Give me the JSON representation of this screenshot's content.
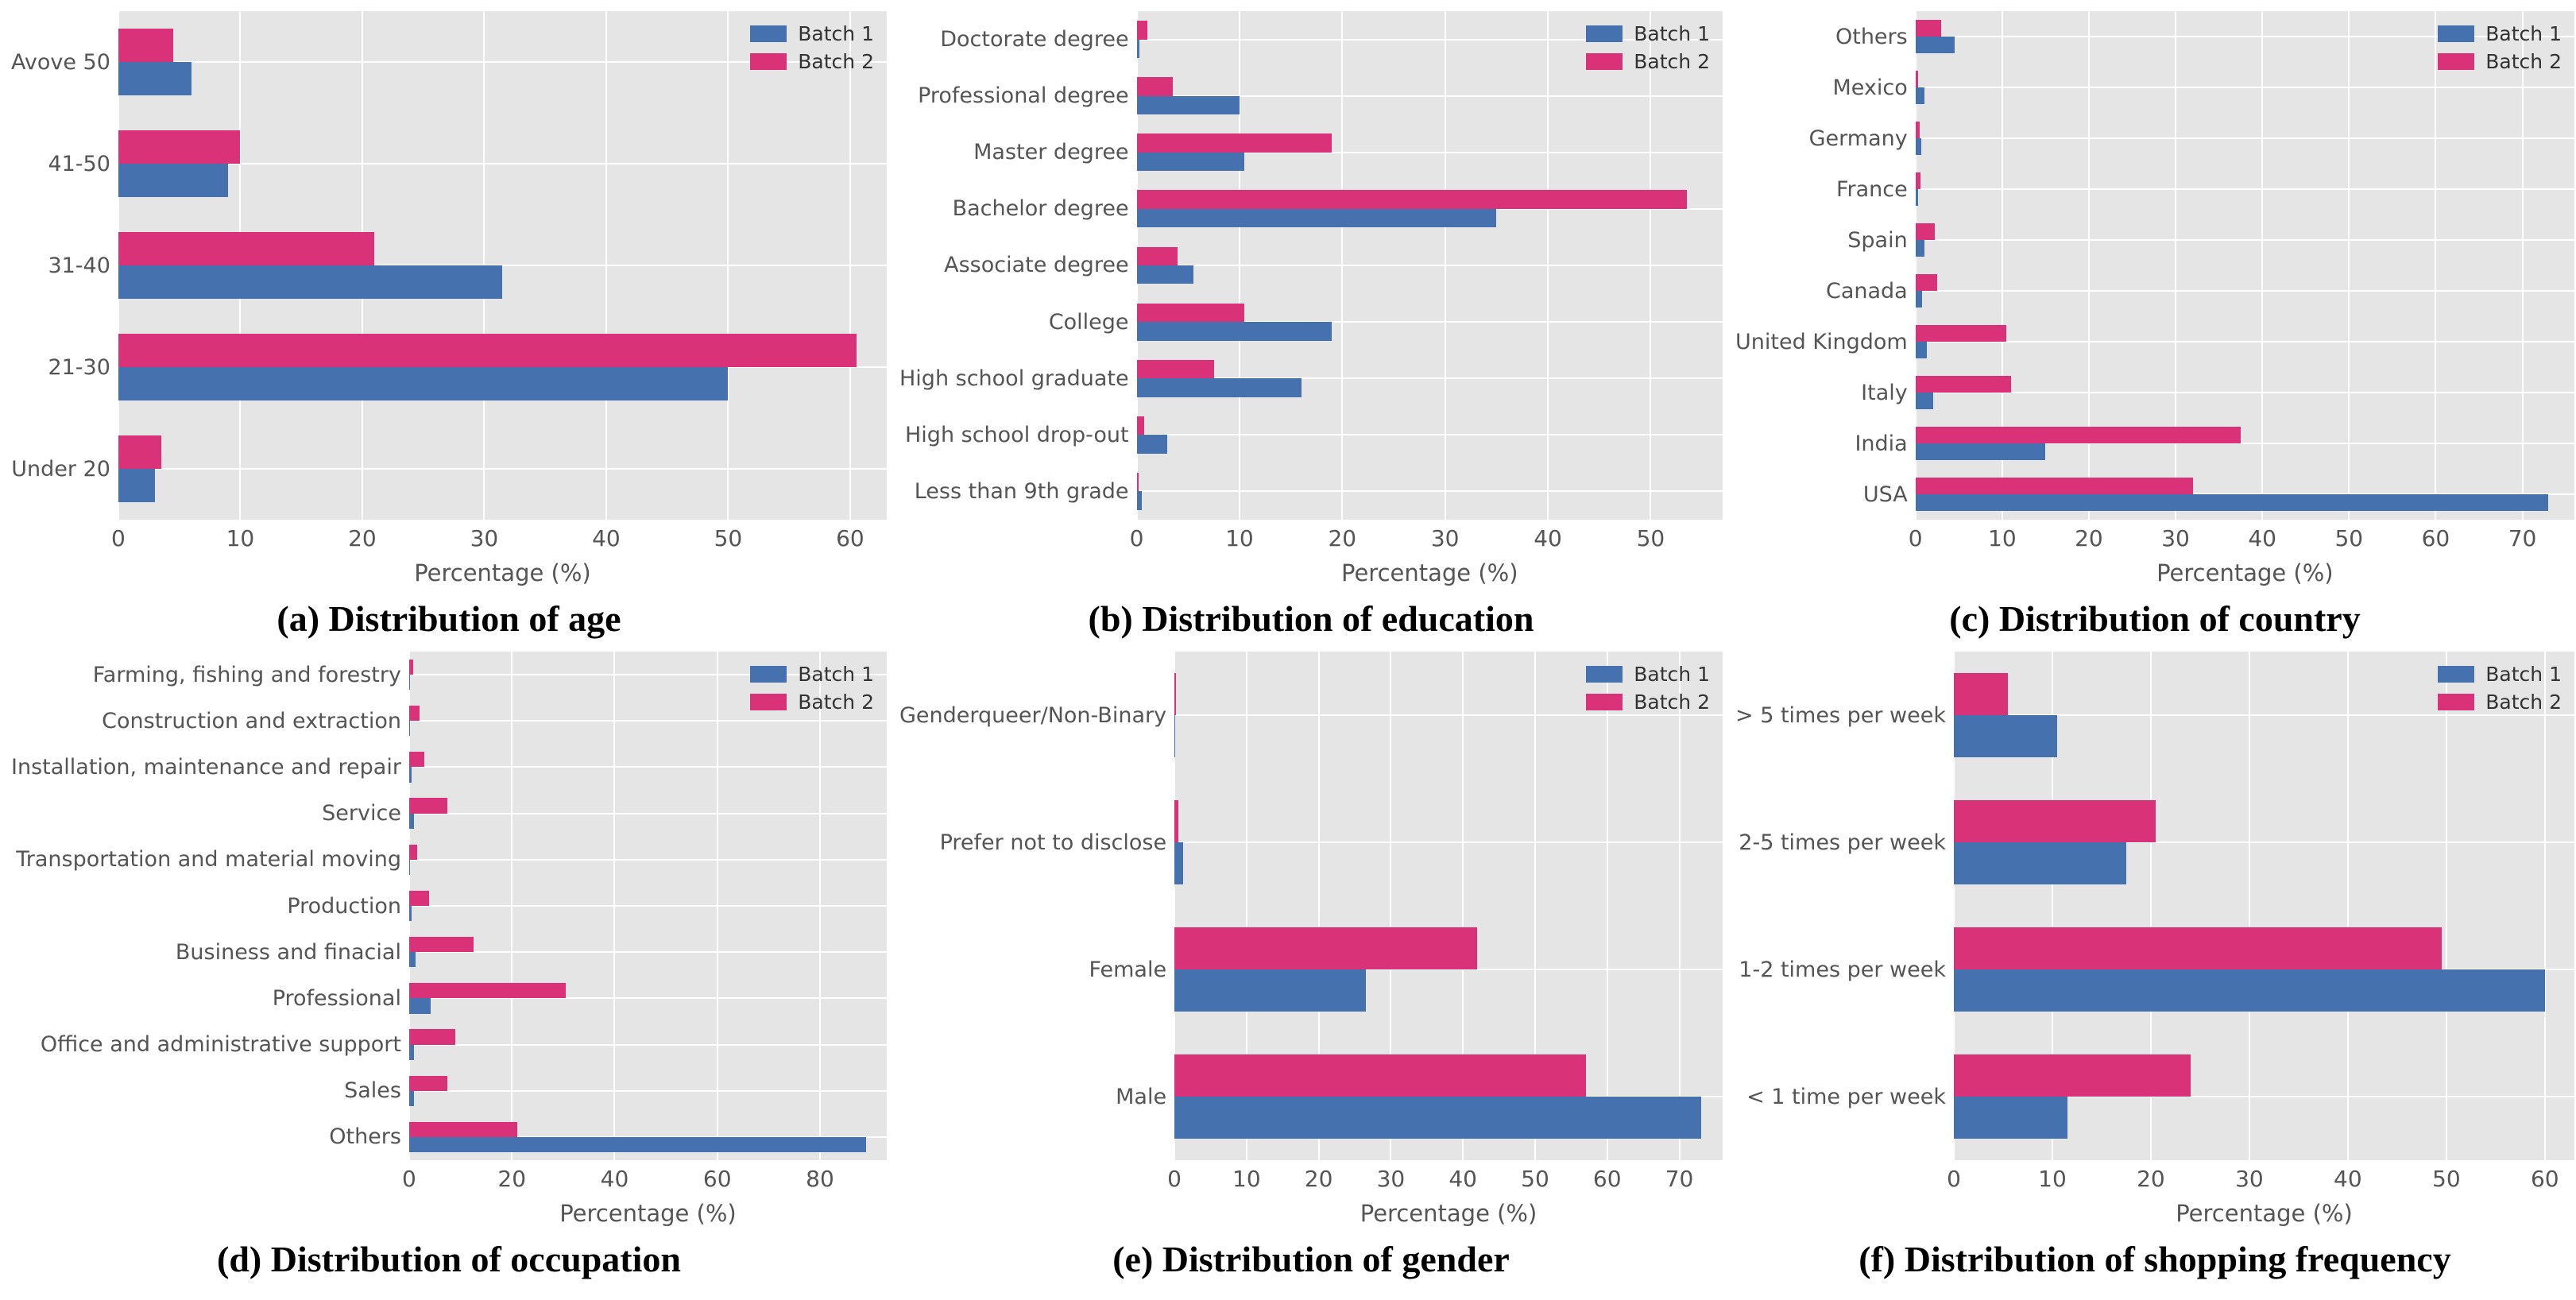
{
  "colors": {
    "batch1": "#4571ae",
    "batch2": "#d93279",
    "plot_background": "#e5e5e5",
    "gridline": "#ffffff",
    "tick_text": "#555555",
    "caption_text": "#000000"
  },
  "legend": {
    "batch1_label": "Batch 1",
    "batch2_label": "Batch 2",
    "position": "top-right"
  },
  "chart_data": [
    {
      "id": "age",
      "type": "bar",
      "orientation": "horizontal",
      "caption": "(a) Distribution of age",
      "xlabel": "Percentage (%)",
      "categories": [
        "Avove 50",
        "41-50",
        "31-40",
        "21-30",
        "Under 20"
      ],
      "series": [
        {
          "name": "Batch 1",
          "values": [
            6,
            9,
            31.5,
            50,
            3
          ]
        },
        {
          "name": "Batch 2",
          "values": [
            4.5,
            10,
            21,
            60.5,
            3.5
          ]
        }
      ],
      "xticks": [
        0,
        10,
        20,
        30,
        40,
        50,
        60
      ],
      "xlim": [
        0,
        63
      ],
      "grid": true
    },
    {
      "id": "education",
      "type": "bar",
      "orientation": "horizontal",
      "caption": "(b) Distribution of education",
      "xlabel": "Percentage (%)",
      "categories": [
        "Doctorate degree",
        "Professional degree",
        "Master degree",
        "Bachelor degree",
        "Associate degree",
        "College",
        "High school graduate",
        "High school drop-out",
        "Less than 9th grade"
      ],
      "series": [
        {
          "name": "Batch 1",
          "values": [
            0.3,
            10,
            10.5,
            35,
            5.5,
            19,
            16,
            3,
            0.5
          ]
        },
        {
          "name": "Batch 2",
          "values": [
            1,
            3.5,
            19,
            53.5,
            4,
            10.5,
            7.5,
            0.7,
            0.2
          ]
        }
      ],
      "xticks": [
        0,
        10,
        20,
        30,
        40,
        50
      ],
      "xlim": [
        0,
        57
      ],
      "grid": true
    },
    {
      "id": "country",
      "type": "bar",
      "orientation": "horizontal",
      "caption": "(c) Distribution of country",
      "xlabel": "Percentage (%)",
      "categories": [
        "Others",
        "Mexico",
        "Germany",
        "France",
        "Spain",
        "Canada",
        "United Kingdom",
        "Italy",
        "India",
        "USA"
      ],
      "series": [
        {
          "name": "Batch 1",
          "values": [
            4.5,
            1,
            0.7,
            0.3,
            1,
            0.8,
            1.3,
            2,
            15,
            73
          ]
        },
        {
          "name": "Batch 2",
          "values": [
            3,
            0.3,
            0.5,
            0.6,
            2.2,
            2.5,
            10.5,
            11,
            37.5,
            32
          ]
        }
      ],
      "xticks": [
        0,
        10,
        20,
        30,
        40,
        50,
        60,
        70
      ],
      "xlim": [
        0,
        76
      ],
      "grid": true
    },
    {
      "id": "occupation",
      "type": "bar",
      "orientation": "horizontal",
      "caption": "(d) Distribution of occupation",
      "xlabel": "Percentage (%)",
      "categories": [
        "Farming, fishing and forestry",
        "Construction and extraction",
        "Installation, maintenance and repair",
        "Service",
        "Transportation and material moving",
        "Production",
        "Business and finacial",
        "Professional",
        "Office and administrative support",
        "Sales",
        "Others"
      ],
      "series": [
        {
          "name": "Batch 1",
          "values": [
            0.1,
            0.2,
            0.4,
            1,
            0.15,
            0.5,
            1.2,
            4.2,
            1,
            1,
            89
          ]
        },
        {
          "name": "Batch 2",
          "values": [
            0.8,
            2,
            3,
            7.5,
            1.5,
            3.8,
            12.5,
            30.5,
            9,
            7.5,
            21
          ]
        }
      ],
      "xticks": [
        0,
        20,
        40,
        60,
        80
      ],
      "xlim": [
        0,
        93
      ],
      "grid": true
    },
    {
      "id": "gender",
      "type": "bar",
      "orientation": "horizontal",
      "caption": "(e) Distribution of gender",
      "xlabel": "Percentage (%)",
      "categories": [
        "Genderqueer/Non-Binary",
        "Prefer not to disclose",
        "Female",
        "Male"
      ],
      "series": [
        {
          "name": "Batch 1",
          "values": [
            0.05,
            1.2,
            26.5,
            73
          ]
        },
        {
          "name": "Batch 2",
          "values": [
            0.25,
            0.5,
            42,
            57
          ]
        }
      ],
      "xticks": [
        0,
        10,
        20,
        30,
        40,
        50,
        60,
        70
      ],
      "xlim": [
        0,
        76
      ],
      "grid": true
    },
    {
      "id": "shopping-frequency",
      "type": "bar",
      "orientation": "horizontal",
      "caption": "(f) Distribution of shopping frequency",
      "xlabel": "Percentage (%)",
      "categories": [
        "> 5 times per week",
        "2-5 times per week",
        "1-2 times per week",
        "< 1 time per week"
      ],
      "series": [
        {
          "name": "Batch 1",
          "values": [
            10.5,
            17.5,
            60,
            11.5
          ]
        },
        {
          "name": "Batch 2",
          "values": [
            5.5,
            20.5,
            49.5,
            24
          ]
        }
      ],
      "xticks": [
        0,
        10,
        20,
        30,
        40,
        50,
        60
      ],
      "xlim": [
        0,
        63
      ],
      "grid": true
    }
  ]
}
